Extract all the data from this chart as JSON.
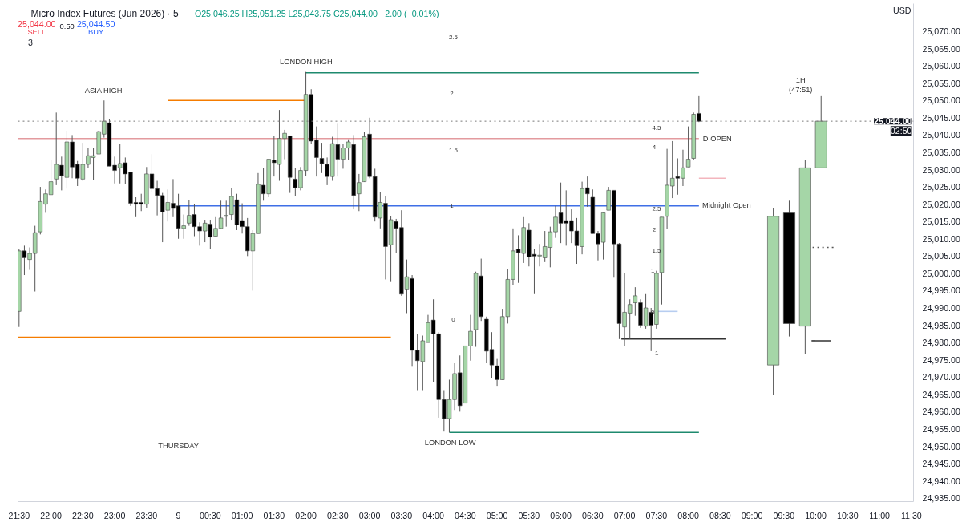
{
  "chart_data": {
    "type": "candlestick",
    "title": "Micro Index Futures (Jun 2026) · 5",
    "subtitle": "O25,046.25 H25,051.25 L25,043.75 C25,044.00 −2.00 (−0.01%)",
    "xlim": [
      "2026-04-08T21:29",
      "2026-04-09T11:32"
    ],
    "ylim": [
      24934,
      25078
    ],
    "xticks": [
      {
        "value": "2026-04-08T21:30",
        "label": "21:30"
      },
      {
        "value": "2026-04-08T22:00",
        "label": "22:00"
      },
      {
        "value": "2026-04-08T22:30",
        "label": "22:30"
      },
      {
        "value": "2026-04-08T23:00",
        "label": "23:00"
      },
      {
        "value": "2026-04-08T23:30",
        "label": "23:30"
      },
      {
        "value": "2026-04-09T00:00",
        "label": "9"
      },
      {
        "value": "2026-04-09T00:30",
        "label": "00:30"
      },
      {
        "value": "2026-04-09T01:00",
        "label": "01:00"
      },
      {
        "value": "2026-04-09T01:30",
        "label": "01:30"
      },
      {
        "value": "2026-04-09T02:00",
        "label": "02:00"
      },
      {
        "value": "2026-04-09T02:30",
        "label": "02:30"
      },
      {
        "value": "2026-04-09T03:00",
        "label": "03:00"
      },
      {
        "value": "2026-04-09T03:30",
        "label": "03:30"
      },
      {
        "value": "2026-04-09T04:00",
        "label": "04:00"
      },
      {
        "value": "2026-04-09T04:30",
        "label": "04:30"
      },
      {
        "value": "2026-04-09T05:00",
        "label": "05:00"
      },
      {
        "value": "2026-04-09T05:30",
        "label": "05:30"
      },
      {
        "value": "2026-04-09T06:00",
        "label": "06:00"
      },
      {
        "value": "2026-04-09T06:30",
        "label": "06:30"
      },
      {
        "value": "2026-04-09T07:00",
        "label": "07:00"
      },
      {
        "value": "2026-04-09T07:30",
        "label": "07:30"
      },
      {
        "value": "2026-04-09T08:00",
        "label": "08:00"
      },
      {
        "value": "2026-04-09T08:30",
        "label": "08:30"
      },
      {
        "value": "2026-04-09T09:00",
        "label": "09:00"
      },
      {
        "value": "2026-04-09T09:30",
        "label": "09:30"
      },
      {
        "value": "2026-04-09T10:00",
        "label": "10:00"
      },
      {
        "value": "2026-04-09T10:30",
        "label": "10:30"
      },
      {
        "value": "2026-04-09T11:00",
        "label": "11:00"
      },
      {
        "value": "2026-04-09T11:30",
        "label": "11:30"
      }
    ],
    "yticks": [
      {
        "value": 24935,
        "label": "24,935.00"
      },
      {
        "value": 24940,
        "label": "24,940.00"
      },
      {
        "value": 24945,
        "label": "24,945.00"
      },
      {
        "value": 24950,
        "label": "24,950.00"
      },
      {
        "value": 24955,
        "label": "24,955.00"
      },
      {
        "value": 24960,
        "label": "24,960.00"
      },
      {
        "value": 24965,
        "label": "24,965.00"
      },
      {
        "value": 24970,
        "label": "24,970.00"
      },
      {
        "value": 24975,
        "label": "24,975.00"
      },
      {
        "value": 24980,
        "label": "24,980.00"
      },
      {
        "value": 24985,
        "label": "24,985.00"
      },
      {
        "value": 24990,
        "label": "24,990.00"
      },
      {
        "value": 24995,
        "label": "24,995.00"
      },
      {
        "value": 25000,
        "label": "25,000.00"
      },
      {
        "value": 25005,
        "label": "25,005.00"
      },
      {
        "value": 25010,
        "label": "25,010.00"
      },
      {
        "value": 25015,
        "label": "25,015.00"
      },
      {
        "value": 25020,
        "label": "25,020.00"
      },
      {
        "value": 25025,
        "label": "25,025.00"
      },
      {
        "value": 25030,
        "label": "25,030.00"
      },
      {
        "value": 25035,
        "label": "25,035.00"
      },
      {
        "value": 25040,
        "label": "25,040.00"
      },
      {
        "value": 25045,
        "label": "25,045.00"
      },
      {
        "value": 25050,
        "label": "25,050.00"
      },
      {
        "value": 25055,
        "label": "25,055.00"
      },
      {
        "value": 25060,
        "label": "25,060.00"
      },
      {
        "value": 25065,
        "label": "25,065.00"
      },
      {
        "value": 25070,
        "label": "25,070.00"
      }
    ],
    "ref_lines": [
      {
        "axis": "y",
        "value": 25044,
        "label": "25,044.00",
        "color": "#777777",
        "line_style": "dotted"
      }
    ],
    "series": [
      {
        "type": "line",
        "color": "#f57c00",
        "x": [
          "2026-04-08T23:50",
          "2026-04-09T02:00"
        ],
        "values": [
          25050,
          25050
        ]
      },
      {
        "type": "line",
        "color": "#f57c00",
        "x": [
          "2026-04-08T21:29",
          "2026-04-09T03:20"
        ],
        "values": [
          24981.5,
          24981.5
        ]
      },
      {
        "type": "line",
        "color": "#1e8a6e",
        "x": [
          "2026-04-09T02:00",
          "2026-04-09T08:10"
        ],
        "values": [
          25058,
          25058
        ]
      },
      {
        "type": "line",
        "color": "#1e8a6e",
        "x": [
          "2026-04-09T04:15",
          "2026-04-09T08:10"
        ],
        "values": [
          24954,
          24954
        ]
      },
      {
        "type": "line",
        "color": "#e39a9e",
        "x": [
          "2026-04-08T21:29",
          "2026-04-09T08:10"
        ],
        "values": [
          25039,
          25039
        ]
      },
      {
        "type": "line",
        "color": "#3f6fe6",
        "x": [
          "2026-04-09T00:00",
          "2026-04-09T08:10"
        ],
        "values": [
          25019.5,
          25019.5
        ]
      },
      {
        "type": "line",
        "color": "#333333",
        "x": [
          "2026-04-09T06:57",
          "2026-04-09T08:35"
        ],
        "values": [
          24981,
          24981
        ]
      },
      {
        "type": "line",
        "color": "#f3b5bd",
        "x": [
          "2026-04-09T08:10",
          "2026-04-09T08:35"
        ],
        "values": [
          25027.5,
          25027.5
        ]
      },
      {
        "type": "line",
        "color": "#b7cdf0",
        "x": [
          "2026-04-09T07:30",
          "2026-04-09T07:50"
        ],
        "values": [
          24989,
          24989
        ]
      },
      {
        "type": "line",
        "color": "#333333",
        "x": [
          "2026-04-09T09:56",
          "2026-04-09T10:14"
        ],
        "values": [
          24980.5,
          24980.5
        ]
      },
      {
        "type": "line",
        "color": "#555555",
        "line_style": "dotted",
        "x": [
          "2026-04-09T09:57",
          "2026-04-09T10:19"
        ],
        "values": [
          25007.5,
          25007.5
        ]
      },
      {
        "x": [
          "2026-04-08T21:30",
          "2026-04-08T21:35",
          "2026-04-08T21:40",
          "2026-04-08T21:45",
          "2026-04-08T21:50",
          "2026-04-08T21:55",
          "2026-04-08T22:00",
          "2026-04-08T22:05",
          "2026-04-08T22:10",
          "2026-04-08T22:15",
          "2026-04-08T22:20",
          "2026-04-08T22:25",
          "2026-04-08T22:30",
          "2026-04-08T22:35",
          "2026-04-08T22:40",
          "2026-04-08T22:45",
          "2026-04-08T22:50",
          "2026-04-08T22:55",
          "2026-04-08T23:00",
          "2026-04-08T23:05",
          "2026-04-08T23:10",
          "2026-04-08T23:15",
          "2026-04-08T23:20",
          "2026-04-08T23:25",
          "2026-04-08T23:30",
          "2026-04-08T23:35",
          "2026-04-08T23:40",
          "2026-04-08T23:45",
          "2026-04-08T23:50",
          "2026-04-08T23:55",
          "2026-04-09T00:00",
          "2026-04-09T00:05",
          "2026-04-09T00:10",
          "2026-04-09T00:15",
          "2026-04-09T00:20",
          "2026-04-09T00:25",
          "2026-04-09T00:30",
          "2026-04-09T00:35",
          "2026-04-09T00:40",
          "2026-04-09T00:45",
          "2026-04-09T00:50",
          "2026-04-09T00:55",
          "2026-04-09T01:00",
          "2026-04-09T01:05",
          "2026-04-09T01:10",
          "2026-04-09T01:15",
          "2026-04-09T01:20",
          "2026-04-09T01:25",
          "2026-04-09T01:30",
          "2026-04-09T01:35",
          "2026-04-09T01:40",
          "2026-04-09T01:45",
          "2026-04-09T01:50",
          "2026-04-09T01:55",
          "2026-04-09T02:00",
          "2026-04-09T02:05",
          "2026-04-09T02:10",
          "2026-04-09T02:15",
          "2026-04-09T02:20",
          "2026-04-09T02:25",
          "2026-04-09T02:30",
          "2026-04-09T02:35",
          "2026-04-09T02:40",
          "2026-04-09T02:45",
          "2026-04-09T02:50",
          "2026-04-09T02:55",
          "2026-04-09T03:00",
          "2026-04-09T03:05",
          "2026-04-09T03:10",
          "2026-04-09T03:15",
          "2026-04-09T03:20",
          "2026-04-09T03:25",
          "2026-04-09T03:30",
          "2026-04-09T03:35",
          "2026-04-09T03:40",
          "2026-04-09T03:45",
          "2026-04-09T03:50",
          "2026-04-09T03:55",
          "2026-04-09T04:00",
          "2026-04-09T04:05",
          "2026-04-09T04:10",
          "2026-04-09T04:15",
          "2026-04-09T04:20",
          "2026-04-09T04:25",
          "2026-04-09T04:30",
          "2026-04-09T04:35",
          "2026-04-09T04:40",
          "2026-04-09T04:45",
          "2026-04-09T04:50",
          "2026-04-09T04:55",
          "2026-04-09T05:00",
          "2026-04-09T05:05",
          "2026-04-09T05:10",
          "2026-04-09T05:15",
          "2026-04-09T05:20",
          "2026-04-09T05:25",
          "2026-04-09T05:30",
          "2026-04-09T05:35",
          "2026-04-09T05:40",
          "2026-04-09T05:45",
          "2026-04-09T05:50",
          "2026-04-09T05:55",
          "2026-04-09T06:00",
          "2026-04-09T06:05",
          "2026-04-09T06:10",
          "2026-04-09T06:15",
          "2026-04-09T06:20",
          "2026-04-09T06:25",
          "2026-04-09T06:30",
          "2026-04-09T06:35",
          "2026-04-09T06:40",
          "2026-04-09T06:45",
          "2026-04-09T06:50",
          "2026-04-09T06:55",
          "2026-04-09T07:00",
          "2026-04-09T07:05",
          "2026-04-09T07:10",
          "2026-04-09T07:15",
          "2026-04-09T07:20",
          "2026-04-09T07:25",
          "2026-04-09T07:30",
          "2026-04-09T07:35",
          "2026-04-09T07:40",
          "2026-04-09T07:45",
          "2026-04-09T07:50",
          "2026-04-09T07:55",
          "2026-04-09T08:00",
          "2026-04-09T08:05",
          "2026-04-09T08:10"
        ],
        "ohlc": [
          [
            24989,
            25007,
            24984.5,
            25006.5
          ],
          [
            25006.5,
            25008,
            24999.5,
            25004.5
          ],
          [
            25004,
            25007.5,
            25001,
            25005.75
          ],
          [
            25005.75,
            25013.75,
            24994.75,
            25011.75
          ],
          [
            25012,
            25025,
            25011.25,
            25020.75
          ],
          [
            25020,
            25024.25,
            25017.5,
            25023
          ],
          [
            25022.75,
            25032.75,
            25022.75,
            25026.5
          ],
          [
            25027.25,
            25046.5,
            25025.5,
            25031.5
          ],
          [
            25031.25,
            25033.75,
            25024,
            25028.25
          ],
          [
            25027.75,
            25041.25,
            25024.5,
            25038
          ],
          [
            25038,
            25040,
            25027.5,
            25030.75
          ],
          [
            25031.5,
            25032.5,
            25025.25,
            25027.5
          ],
          [
            25027.25,
            25037.75,
            25026.75,
            25031.5
          ],
          [
            25031.5,
            25036.25,
            25030.5,
            25034
          ],
          [
            25033.5,
            25036.25,
            25027,
            25034
          ],
          [
            25034.5,
            25041.25,
            25034.5,
            25041
          ],
          [
            25040.25,
            25050,
            25039.25,
            25044
          ],
          [
            25043.5,
            25044.5,
            25031,
            25031
          ],
          [
            25031.25,
            25033.75,
            25026,
            25029.75
          ],
          [
            25030.5,
            25037.5,
            25026,
            25031.75
          ],
          [
            25032,
            25033.5,
            25025.75,
            25028.75
          ],
          [
            25029.25,
            25029.25,
            25019.5,
            25020.25
          ],
          [
            25020.5,
            25022,
            25016.25,
            25020
          ],
          [
            25020.5,
            25023,
            25018,
            25020
          ],
          [
            25020,
            25030.75,
            25019,
            25028.75
          ],
          [
            25028.75,
            25034.5,
            25023.5,
            25024.5
          ],
          [
            25024.5,
            25026.75,
            25016.75,
            25022.5
          ],
          [
            25022.5,
            25023.25,
            25009,
            25017.75
          ],
          [
            25018.25,
            25024.25,
            25015,
            25020.5
          ],
          [
            25020.25,
            25027.25,
            25016.25,
            25018.75
          ],
          [
            25019.5,
            25023,
            25010,
            25013
          ],
          [
            25013,
            25017,
            25010,
            25013.75
          ],
          [
            25014.5,
            25021.25,
            25013.75,
            25016.75
          ],
          [
            25017,
            25020,
            25010.75,
            25013.5
          ],
          [
            25013.5,
            25014.75,
            25008,
            25012.25
          ],
          [
            25012.25,
            25015.5,
            25009,
            25014.5
          ],
          [
            25014.25,
            25015.5,
            25007,
            25010.5
          ],
          [
            25010.75,
            25016.25,
            25010.75,
            25013
          ],
          [
            25013,
            25021,
            25013,
            25016
          ],
          [
            25016.5,
            25021,
            25013.5,
            25016.75
          ],
          [
            25017,
            25024.75,
            25015.5,
            25022.25
          ],
          [
            25021.25,
            25023,
            25012.5,
            25014
          ],
          [
            25015.25,
            25020.25,
            25011.5,
            25013.5
          ],
          [
            25013.5,
            25016,
            25005,
            25006.5
          ],
          [
            25006.5,
            25012.5,
            24995,
            25011.5
          ],
          [
            25011.5,
            25029,
            25011.5,
            25025.75
          ],
          [
            25025.5,
            25030.5,
            25021,
            25023
          ],
          [
            25023,
            25033,
            25022,
            25033
          ],
          [
            25032.75,
            25039.75,
            25028,
            25032
          ],
          [
            25031.5,
            25047.25,
            25026.75,
            25039
          ],
          [
            25039,
            25041.5,
            25033,
            25040.5
          ],
          [
            25039.75,
            25039.75,
            25023.25,
            25027.75
          ],
          [
            25027.25,
            25030.5,
            25022.25,
            25024.75
          ],
          [
            25024.75,
            25030.75,
            25024,
            25029.75
          ],
          [
            25029.75,
            25058.25,
            25028.25,
            25051.75
          ],
          [
            25051.75,
            25053.25,
            25037.5,
            25038.25
          ],
          [
            25038.5,
            25042.5,
            25028,
            25033.5
          ],
          [
            25033.25,
            25037.75,
            25029,
            25031.75
          ],
          [
            25031.5,
            25033.5,
            25025.5,
            25028
          ],
          [
            25028,
            25039.5,
            25026.75,
            25037.5
          ],
          [
            25037.25,
            25043.25,
            25028,
            25033
          ],
          [
            25033,
            25037.5,
            25030.25,
            25036.25
          ],
          [
            25036.25,
            25038.75,
            25032.75,
            25038
          ],
          [
            25037.25,
            25040,
            25018.5,
            25022.5
          ],
          [
            25023,
            25028.75,
            25018,
            25026.25
          ],
          [
            25026.5,
            25041,
            25026.5,
            25039.5
          ],
          [
            25040.25,
            25045,
            25027.5,
            25028
          ],
          [
            25028,
            25030.25,
            25015,
            25016.25
          ],
          [
            25016,
            25023.5,
            25013,
            25020.5
          ],
          [
            25020.25,
            25022.25,
            24998.25,
            25007.75
          ],
          [
            25008.25,
            25016.5,
            24997.5,
            25015.5
          ],
          [
            25015,
            25015.75,
            25006,
            25013
          ],
          [
            25013.25,
            25018.25,
            24993.5,
            24994
          ],
          [
            24995.25,
            25004,
            24988.5,
            24999
          ],
          [
            24998.5,
            24999.5,
            24973,
            24977.75
          ],
          [
            24977.75,
            24982.5,
            24966,
            24974.75
          ],
          [
            24974.5,
            24982,
            24966,
            24980.5
          ],
          [
            24980,
            24988,
            24980,
            24985.75
          ],
          [
            24986.5,
            24992.5,
            24968.5,
            24982.5
          ],
          [
            24982.5,
            24983,
            24958.25,
            24963.5
          ],
          [
            24963.5,
            24966,
            24954.25,
            24958
          ],
          [
            24958,
            24969.25,
            24954,
            24963.5
          ],
          [
            24963.5,
            24974,
            24960.5,
            24971
          ],
          [
            24971.25,
            24976.25,
            24960,
            24961.75
          ],
          [
            24962.5,
            24979,
            24962.5,
            24979
          ],
          [
            24979,
            24988,
            24974.75,
            24983.25
          ],
          [
            24983.75,
            25000.5,
            24978.75,
            25000
          ],
          [
            24999.25,
            25004.25,
            24986.25,
            24987.5
          ],
          [
            24986.75,
            24987.5,
            24974,
            24977.5
          ],
          [
            24978,
            24983,
            24969.75,
            24973.5
          ],
          [
            24973.25,
            24975.25,
            24967.25,
            24969.25
          ],
          [
            24969.25,
            24989.75,
            24969.25,
            24987.5
          ],
          [
            24987.5,
            25001.25,
            24985.5,
            24998.25
          ],
          [
            24998.25,
            25013,
            24996.5,
            25006.5
          ],
          [
            25007,
            25011,
            24997.25,
            25006
          ],
          [
            25005.75,
            25016.25,
            25003,
            25013.25
          ],
          [
            25012.5,
            25014.5,
            25002,
            25004.75
          ],
          [
            25005.5,
            25007,
            24994,
            25005
          ],
          [
            25005,
            25008.5,
            25002,
            25005.25
          ],
          [
            25004.5,
            25012.25,
            25003.25,
            25007.75
          ],
          [
            25007.5,
            25013.5,
            25001.75,
            25012
          ],
          [
            25012,
            25019.5,
            25010.25,
            25016.25
          ],
          [
            25017.5,
            25026.25,
            25008.75,
            25014.5
          ],
          [
            25015.25,
            25024,
            25008,
            25014.5
          ],
          [
            25015.25,
            25018.5,
            25008.75,
            25012.25
          ],
          [
            25012.25,
            25016,
            25002.75,
            25008
          ],
          [
            25007.75,
            25026.5,
            25005.5,
            25024.5
          ],
          [
            25024.75,
            25028,
            25019.25,
            25023
          ],
          [
            25022,
            25024.25,
            25011.5,
            25011.5
          ],
          [
            25011.5,
            25012.25,
            25003.75,
            25008.5
          ],
          [
            25009,
            25017.5,
            25004,
            25017.5
          ],
          [
            25018.25,
            25025,
            25018.25,
            25024
          ],
          [
            25024,
            25024,
            24998.75,
            25008.5
          ],
          [
            25008.5,
            25008.75,
            24981,
            24985.5
          ],
          [
            24984.5,
            25000,
            24979,
            24988.75
          ],
          [
            24988.5,
            24992.5,
            24981,
            24991
          ],
          [
            24991.5,
            24996,
            24987.75,
            24993.5
          ],
          [
            24991.5,
            24992.5,
            24984.25,
            24985
          ],
          [
            24984.75,
            24994,
            24984,
            24990
          ],
          [
            24988.75,
            24990,
            24977.5,
            24985
          ],
          [
            24985.25,
            25000.75,
            24984,
            25000
          ],
          [
            25000.25,
            25016.25,
            24991,
            25016.25
          ],
          [
            25016.5,
            25036,
            25012.75,
            25025.5
          ],
          [
            25025.25,
            25038.25,
            25021.75,
            25027.5
          ],
          [
            25028,
            25033.25,
            25022.75,
            25027.5
          ],
          [
            25027.5,
            25035.75,
            25025.25,
            25030.5
          ],
          [
            25030.75,
            25042.5,
            25030.75,
            25033
          ],
          [
            25033.25,
            25046.5,
            25032.75,
            25046
          ],
          [
            25046.25,
            25051.25,
            25043.75,
            25044
          ]
        ],
        "colors": [
          "#a5d6a7",
          "#000000",
          "#a5d6a7",
          "#a5d6a7",
          "#a5d6a7",
          "#a5d6a7",
          "#a5d6a7",
          "#a5d6a7",
          "#000000",
          "#a5d6a7",
          "#000000",
          "#000000",
          "#a5d6a7",
          "#a5d6a7",
          "#a5d6a7",
          "#a5d6a7",
          "#a5d6a7",
          "#000000",
          "#000000",
          "#a5d6a7",
          "#000000",
          "#000000",
          "#000000",
          "#000000",
          "#a5d6a7",
          "#000000",
          "#000000",
          "#000000",
          "#a5d6a7",
          "#000000",
          "#000000",
          "#a5d6a7",
          "#a5d6a7",
          "#000000",
          "#000000",
          "#a5d6a7",
          "#000000",
          "#a5d6a7",
          "#a5d6a7",
          "#a5d6a7",
          "#a5d6a7",
          "#000000",
          "#000000",
          "#000000",
          "#a5d6a7",
          "#a5d6a7",
          "#000000",
          "#a5d6a7",
          "#000000",
          "#a5d6a7",
          "#a5d6a7",
          "#000000",
          "#000000",
          "#a5d6a7",
          "#a5d6a7",
          "#000000",
          "#000000",
          "#000000",
          "#000000",
          "#a5d6a7",
          "#000000",
          "#a5d6a7",
          "#a5d6a7",
          "#000000",
          "#a5d6a7",
          "#a5d6a7",
          "#000000",
          "#000000",
          "#a5d6a7",
          "#000000",
          "#a5d6a7",
          "#000000",
          "#000000",
          "#a5d6a7",
          "#000000",
          "#000000",
          "#a5d6a7",
          "#a5d6a7",
          "#000000",
          "#000000",
          "#000000",
          "#a5d6a7",
          "#a5d6a7",
          "#000000",
          "#a5d6a7",
          "#a5d6a7",
          "#a5d6a7",
          "#000000",
          "#000000",
          "#000000",
          "#000000",
          "#a5d6a7",
          "#a5d6a7",
          "#a5d6a7",
          "#000000",
          "#a5d6a7",
          "#000000",
          "#000000",
          "#a5d6a7",
          "#a5d6a7",
          "#a5d6a7",
          "#a5d6a7",
          "#000000",
          "#000000",
          "#000000",
          "#000000",
          "#a5d6a7",
          "#000000",
          "#000000",
          "#000000",
          "#a5d6a7",
          "#a5d6a7",
          "#000000",
          "#000000",
          "#a5d6a7",
          "#a5d6a7",
          "#a5d6a7",
          "#000000",
          "#a5d6a7",
          "#000000",
          "#a5d6a7",
          "#a5d6a7",
          "#a5d6a7",
          "#a5d6a7",
          "#000000",
          "#a5d6a7",
          "#a5d6a7",
          "#a5d6a7",
          "#000000"
        ]
      },
      {
        "x": [
          "2026-04-09T09:20",
          "2026-04-09T09:35",
          "2026-04-09T09:50",
          "2026-04-09T10:05"
        ],
        "ohlc": [
          [
            24973.5,
            25018.75,
            24964.75,
            25016.5
          ],
          [
            25017.5,
            25021,
            24981.75,
            24985.5
          ],
          [
            24984.75,
            25032.75,
            24976.75,
            25030.5
          ],
          [
            25030.5,
            25051.25,
            25030.5,
            25044
          ]
        ],
        "colors": [
          "#a5d6a7",
          "#000000",
          "#a5d6a7",
          "#a5d6a7"
        ]
      }
    ],
    "annotations": [
      "25,044.00",
      "SELL",
      "0.50",
      "25,044.50",
      "BUY",
      "3",
      "USD",
      "02:50",
      "ASIA HIGH",
      "LONDON HIGH",
      "LONDON LOW",
      "THURSDAY",
      "D OPEN",
      "Midnight Open",
      "2.5",
      "2",
      "1.5",
      "1",
      "0",
      "4.5",
      "4",
      "2.5",
      "2",
      "1.5",
      "1",
      "0",
      "-1",
      "1H",
      "(47:51)"
    ]
  }
}
